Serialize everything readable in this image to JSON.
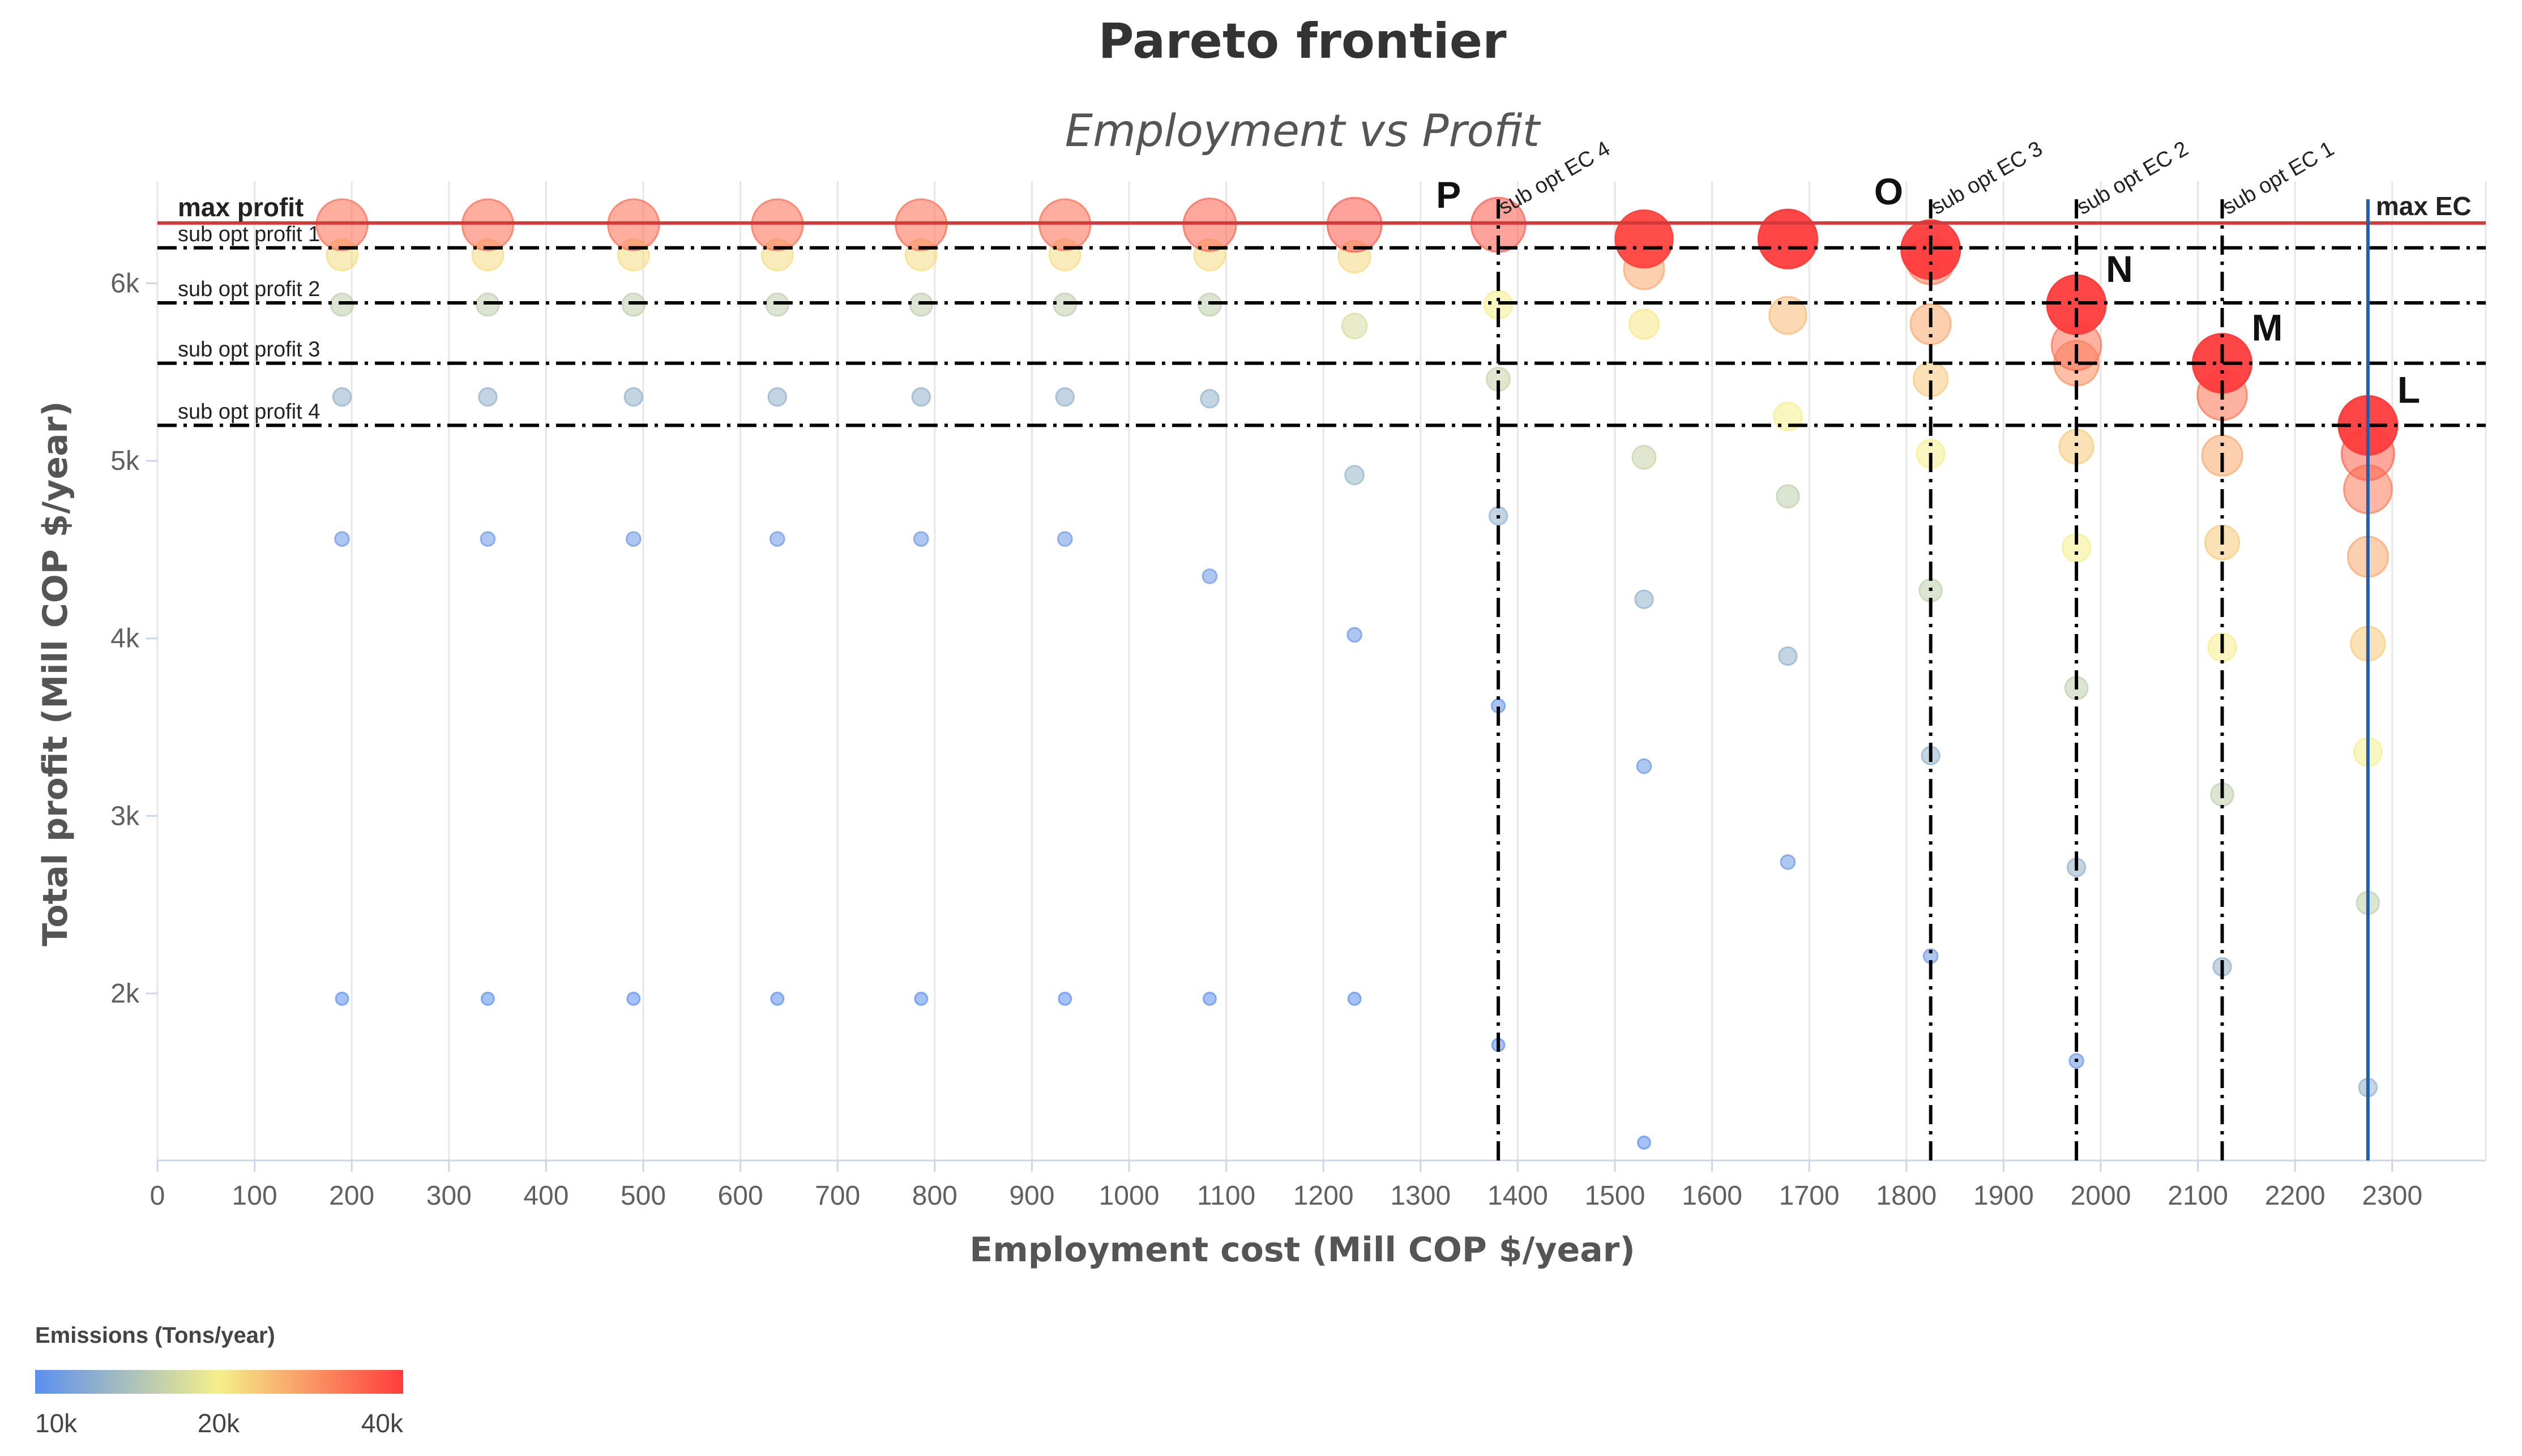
{
  "chart_data": {
    "type": "scatter",
    "title": "Pareto frontier",
    "subtitle": "Employment vs Profit",
    "xlabel": "Employment cost (Mill COP $/year)",
    "ylabel": "Total profit (Mill COP $/year)",
    "xlim": [
      0,
      2400
    ],
    "ylim": [
      1100,
      6600
    ],
    "x_ticks": [
      0,
      100,
      200,
      300,
      400,
      500,
      600,
      700,
      800,
      900,
      1000,
      1100,
      1200,
      1300,
      1400,
      1500,
      1600,
      1700,
      1800,
      1900,
      2000,
      2100,
      2200,
      2300
    ],
    "x_tick_labels": [
      "0",
      "100",
      "200",
      "300",
      "400",
      "500",
      "600",
      "700",
      "800",
      "900",
      "1000",
      "1100",
      "1200",
      "1300",
      "1400",
      "1500",
      "1600",
      "1700",
      "1800",
      "1900",
      "2000",
      "2100",
      "2200",
      "2300"
    ],
    "y_ticks": [
      2000,
      3000,
      4000,
      5000,
      6000
    ],
    "y_tick_labels": [
      "2k",
      "3k",
      "4k",
      "5k",
      "6k"
    ],
    "grid": "vertical",
    "color_legend": {
      "title": "Emissions (Tons/year)",
      "min": 10000,
      "max": 40000,
      "labels": [
        "10k",
        "20k",
        "40k"
      ],
      "colors": [
        "#5b8ff0",
        "#f5ef8a",
        "#ff3c3c"
      ]
    },
    "reference_lines": {
      "horizontal": [
        {
          "label": "max profit",
          "y": 6340,
          "style": "solid",
          "color": "#d33b3b"
        },
        {
          "label": "sub opt profit 1",
          "y": 6200,
          "style": "dashdot",
          "color": "#000000"
        },
        {
          "label": "sub opt profit 2",
          "y": 5890,
          "style": "dashdot",
          "color": "#000000"
        },
        {
          "label": "sub opt profit 3",
          "y": 5550,
          "style": "dashdot",
          "color": "#000000"
        },
        {
          "label": "sub opt profit 4",
          "y": 5200,
          "style": "dashdot",
          "color": "#000000"
        }
      ],
      "vertical": [
        {
          "label": "sub opt EC 4",
          "x": 1380,
          "style": "dashdot",
          "color": "#000000"
        },
        {
          "label": "sub opt EC 3",
          "x": 1825,
          "style": "dashdot",
          "color": "#000000"
        },
        {
          "label": "sub opt EC 2",
          "x": 1975,
          "style": "dashdot",
          "color": "#000000"
        },
        {
          "label": "sub opt EC 1",
          "x": 2125,
          "style": "dashdot",
          "color": "#000000"
        },
        {
          "label": "max EC",
          "x": 2275,
          "style": "solid",
          "color": "#1f5fb0"
        }
      ]
    },
    "annotations": [
      {
        "label": "P",
        "x": 1380,
        "y": 6330
      },
      {
        "label": "O",
        "x": 1825,
        "y": 6190
      },
      {
        "label": "N",
        "x": 1975,
        "y": 5880
      },
      {
        "label": "M",
        "x": 2125,
        "y": 5550
      },
      {
        "label": "L",
        "x": 2275,
        "y": 5200
      }
    ],
    "series": [
      {
        "name": "solutions",
        "columns": [
          "x",
          "y",
          "emissions"
        ],
        "points": [
          [
            190,
            6330,
            35000
          ],
          [
            190,
            6160,
            22000
          ],
          [
            190,
            5880,
            16500
          ],
          [
            190,
            5360,
            13500
          ],
          [
            190,
            4560,
            11000
          ],
          [
            190,
            1970,
            10000
          ],
          [
            340,
            6330,
            35000
          ],
          [
            340,
            6160,
            22000
          ],
          [
            340,
            5880,
            16500
          ],
          [
            340,
            5360,
            13500
          ],
          [
            340,
            4560,
            11000
          ],
          [
            340,
            1970,
            10000
          ],
          [
            490,
            6330,
            35000
          ],
          [
            490,
            6160,
            22000
          ],
          [
            490,
            5880,
            16500
          ],
          [
            490,
            5360,
            13500
          ],
          [
            490,
            4560,
            11000
          ],
          [
            490,
            1970,
            10000
          ],
          [
            638,
            6330,
            35000
          ],
          [
            638,
            6160,
            22000
          ],
          [
            638,
            5880,
            16500
          ],
          [
            638,
            5360,
            13500
          ],
          [
            638,
            4560,
            11000
          ],
          [
            638,
            1970,
            10000
          ],
          [
            786,
            6330,
            35000
          ],
          [
            786,
            6160,
            22000
          ],
          [
            786,
            5880,
            16500
          ],
          [
            786,
            5360,
            13500
          ],
          [
            786,
            4560,
            11000
          ],
          [
            786,
            1970,
            10000
          ],
          [
            934,
            6330,
            35000
          ],
          [
            934,
            6160,
            22000
          ],
          [
            934,
            5880,
            16500
          ],
          [
            934,
            5360,
            13500
          ],
          [
            934,
            4560,
            11000
          ],
          [
            934,
            1970,
            10000
          ],
          [
            1083,
            6330,
            36000
          ],
          [
            1083,
            6160,
            22000
          ],
          [
            1083,
            5880,
            16500
          ],
          [
            1083,
            5350,
            13500
          ],
          [
            1083,
            4350,
            11000
          ],
          [
            1083,
            1970,
            10000
          ],
          [
            1232,
            6330,
            37000
          ],
          [
            1232,
            6150,
            22500
          ],
          [
            1232,
            5760,
            18000
          ],
          [
            1232,
            4920,
            14000
          ],
          [
            1232,
            4020,
            11000
          ],
          [
            1232,
            1970,
            10000
          ],
          [
            1380,
            6330,
            37000
          ],
          [
            1380,
            5880,
            20000
          ],
          [
            1380,
            5460,
            17000
          ],
          [
            1380,
            4690,
            13500
          ],
          [
            1380,
            3620,
            10500
          ],
          [
            1380,
            1710,
            10000
          ],
          [
            1530,
            6250,
            39000
          ],
          [
            1530,
            6080,
            28000
          ],
          [
            1530,
            5770,
            21000
          ],
          [
            1530,
            5020,
            17000
          ],
          [
            1530,
            4220,
            13500
          ],
          [
            1530,
            3280,
            11000
          ],
          [
            1530,
            1160,
            10000
          ],
          [
            1678,
            6250,
            40000
          ],
          [
            1678,
            5820,
            26000
          ],
          [
            1678,
            5250,
            20000
          ],
          [
            1678,
            4800,
            16500
          ],
          [
            1678,
            3900,
            13500
          ],
          [
            1678,
            2740,
            11000
          ],
          [
            1825,
            6190,
            40000
          ],
          [
            1825,
            6130,
            33000
          ],
          [
            1825,
            5770,
            28000
          ],
          [
            1825,
            5460,
            24000
          ],
          [
            1825,
            5040,
            20000
          ],
          [
            1825,
            4270,
            16500
          ],
          [
            1825,
            3340,
            13500
          ],
          [
            1825,
            2210,
            11000
          ],
          [
            1975,
            5880,
            40000
          ],
          [
            1975,
            5650,
            34000
          ],
          [
            1975,
            5550,
            31000
          ],
          [
            1975,
            5080,
            24000
          ],
          [
            1975,
            4510,
            20000
          ],
          [
            1975,
            3720,
            16500
          ],
          [
            1975,
            2710,
            13500
          ],
          [
            1975,
            1620,
            11000
          ],
          [
            2125,
            5550,
            40000
          ],
          [
            2125,
            5370,
            34000
          ],
          [
            2125,
            5030,
            28000
          ],
          [
            2125,
            4540,
            24000
          ],
          [
            2125,
            3950,
            20000
          ],
          [
            2125,
            3120,
            16500
          ],
          [
            2125,
            2150,
            13500
          ],
          [
            2275,
            5200,
            40000
          ],
          [
            2275,
            5040,
            36000
          ],
          [
            2275,
            4840,
            33000
          ],
          [
            2275,
            4460,
            28000
          ],
          [
            2275,
            3970,
            24000
          ],
          [
            2275,
            3360,
            20000
          ],
          [
            2275,
            2510,
            16500
          ],
          [
            2275,
            1470,
            13500
          ]
        ]
      }
    ]
  }
}
